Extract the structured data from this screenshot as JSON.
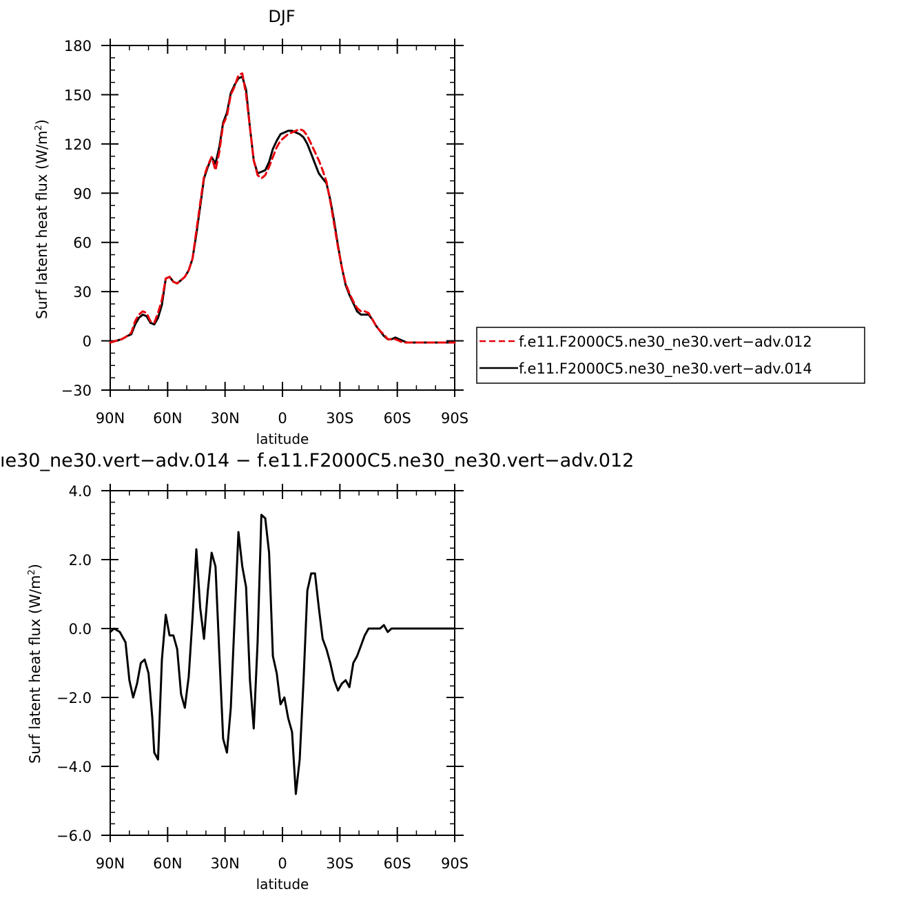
{
  "chart_data": [
    {
      "type": "line",
      "title": "DJF",
      "xlabel": "latitude",
      "ylabel": "Surf latent heat flux (W/m²)",
      "ylabel_main": "Surf latent heat flux (W/m",
      "ylabel_sup": "2",
      "ylabel_close": ")",
      "xlim": [
        90,
        -90
      ],
      "ylim": [
        -30,
        180
      ],
      "x_ticks": [
        90,
        60,
        30,
        0,
        -30,
        -60,
        -90
      ],
      "x_tick_labels": [
        "90N",
        "60N",
        "30N",
        "0",
        "30S",
        "60S",
        "90S"
      ],
      "y_ticks": [
        -30,
        0,
        30,
        60,
        90,
        120,
        150,
        180
      ],
      "y_tick_labels": [
        "−30",
        "0",
        "30",
        "60",
        "90",
        "120",
        "150",
        "180"
      ],
      "legend_position": "right",
      "series": [
        {
          "name": "f.e11.F2000C5.ne30_ne30.vert−adv.012",
          "color": "#e8000b",
          "dash": "dashed",
          "x": [
            90,
            87,
            84,
            81,
            79,
            77,
            75,
            73,
            71,
            69,
            67,
            65,
            63,
            61,
            59,
            57,
            55,
            53,
            51,
            49,
            47,
            45,
            43,
            41,
            39,
            37,
            35,
            33,
            31,
            29,
            27,
            25,
            23,
            21,
            19,
            17,
            15,
            13,
            11,
            9,
            7,
            5,
            3,
            1,
            -1,
            -3,
            -5,
            -7,
            -9,
            -11,
            -13,
            -15,
            -17,
            -19,
            -21,
            -23,
            -25,
            -27,
            -29,
            -31,
            -33,
            -35,
            -37,
            -39,
            -41,
            -43,
            -45,
            -47,
            -49,
            -51,
            -53,
            -55,
            -57,
            -59,
            -61,
            -63,
            -65,
            -67,
            -69,
            -71,
            -73,
            -75,
            -77,
            -79,
            -81,
            -83,
            -85,
            -87,
            -89,
            -90
          ],
          "y": [
            -1,
            0,
            1,
            3,
            5,
            12,
            16,
            18,
            17,
            12,
            11,
            17,
            25,
            38,
            39,
            36,
            35,
            37,
            39,
            43,
            50,
            67,
            84,
            100,
            107,
            112,
            104,
            115,
            132,
            137,
            150,
            155,
            162,
            163,
            150,
            130,
            110,
            101,
            99,
            101,
            106,
            112,
            118,
            122,
            124,
            126,
            127,
            128,
            129,
            128,
            125,
            120,
            115,
            110,
            104,
            97,
            85,
            71,
            57,
            45,
            35,
            29,
            24,
            20,
            18,
            18,
            17,
            13,
            9,
            6,
            4,
            1,
            1,
            1,
            0,
            -1,
            -1,
            -1,
            -1,
            -1,
            -1,
            -1,
            -1,
            -1,
            -1,
            -1,
            -1,
            -1,
            -1,
            -1
          ]
        },
        {
          "name": "f.e11.F2000C5.ne30_ne30.vert−adv.014",
          "color": "#000000",
          "dash": "solid",
          "x": [
            90,
            87,
            84,
            81,
            79,
            77,
            75,
            73,
            71,
            69,
            67,
            65,
            63,
            61,
            59,
            57,
            55,
            53,
            51,
            49,
            47,
            45,
            43,
            41,
            39,
            37,
            35,
            33,
            31,
            29,
            27,
            25,
            23,
            21,
            19,
            17,
            15,
            13,
            11,
            9,
            7,
            5,
            3,
            1,
            -1,
            -3,
            -5,
            -7,
            -9,
            -11,
            -13,
            -15,
            -17,
            -19,
            -21,
            -23,
            -25,
            -27,
            -29,
            -31,
            -33,
            -35,
            -37,
            -39,
            -41,
            -43,
            -45,
            -47,
            -49,
            -51,
            -53,
            -55,
            -57,
            -59,
            -61,
            -63,
            -65,
            -67,
            -69,
            -71,
            -73,
            -75,
            -77,
            -79,
            -81,
            -83,
            -85,
            -87,
            -89,
            -90
          ],
          "y": [
            -1,
            0,
            1,
            3,
            4,
            10,
            14,
            16,
            15,
            11,
            10,
            14,
            22,
            38,
            39,
            36,
            35,
            37,
            39,
            43,
            50,
            65,
            82,
            99,
            106,
            112,
            108,
            118,
            133,
            139,
            151,
            156,
            160,
            161,
            153,
            130,
            110,
            102,
            103,
            104,
            109,
            117,
            122,
            126,
            127,
            128,
            128,
            127,
            126,
            124,
            120,
            114,
            108,
            102,
            99,
            96,
            86,
            73,
            58,
            45,
            34,
            28,
            23,
            18,
            16,
            16,
            16,
            13,
            9,
            6,
            3,
            1,
            1,
            2,
            1,
            0,
            -1,
            -1,
            -1,
            -1,
            -1,
            -1,
            -1,
            -1,
            -1,
            -1,
            -1,
            -1,
            -1,
            -1
          ]
        }
      ]
    },
    {
      "type": "line",
      "title": "ıe30_ne30.vert−adv.014 − f.e11.F2000C5.ne30_ne30.vert−adv.012",
      "xlabel": "latitude",
      "ylabel": "Surf latent heat flux (W/m²)",
      "ylabel_main": "Surf latent heat flux (W/m",
      "ylabel_sup": "2",
      "ylabel_close": ")",
      "xlim": [
        90,
        -90
      ],
      "ylim": [
        -6,
        4
      ],
      "x_ticks": [
        90,
        60,
        30,
        0,
        -30,
        -60,
        -90
      ],
      "x_tick_labels": [
        "90N",
        "60N",
        "30N",
        "0",
        "30S",
        "60S",
        "90S"
      ],
      "y_ticks": [
        -6,
        -4,
        -2,
        0,
        2,
        4
      ],
      "y_tick_labels": [
        "−6.0",
        "−4.0",
        "−2.0",
        "0.0",
        "2.0",
        "4.0"
      ],
      "series": [
        {
          "color": "#000000",
          "dash": "solid",
          "x": [
            90,
            88,
            85,
            82,
            80,
            78,
            76,
            74,
            72,
            70,
            68,
            67,
            65,
            63,
            61,
            59,
            57,
            55,
            53,
            51,
            49,
            47,
            45,
            43,
            41,
            39,
            37,
            35,
            33,
            31,
            29,
            27,
            25,
            23,
            21,
            19,
            17,
            15,
            13,
            11,
            9,
            7,
            5,
            3,
            1,
            -1,
            -3,
            -5,
            -7,
            -9,
            -11,
            -13,
            -15,
            -17,
            -19,
            -21,
            -23,
            -25,
            -27,
            -29,
            -31,
            -33,
            -35,
            -37,
            -39,
            -41,
            -43,
            -45,
            -47,
            -49,
            -51,
            -53,
            -55,
            -57,
            -59,
            -61,
            -63,
            -65,
            -67,
            -69,
            -71,
            -73,
            -75,
            -77,
            -79,
            -81,
            -83,
            -85,
            -87,
            -89,
            -90
          ],
          "y": [
            -0.1,
            0.0,
            -0.1,
            -0.4,
            -1.5,
            -2.0,
            -1.6,
            -1.0,
            -0.9,
            -1.3,
            -2.6,
            -3.6,
            -3.8,
            -0.9,
            0.4,
            -0.2,
            -0.2,
            -0.6,
            -1.9,
            -2.3,
            -1.4,
            0.3,
            2.3,
            0.6,
            -0.3,
            1.1,
            2.2,
            1.8,
            -0.7,
            -3.2,
            -3.6,
            -2.3,
            0.3,
            2.8,
            1.8,
            1.2,
            -1.5,
            -2.9,
            -0.4,
            3.3,
            3.2,
            2.2,
            -0.8,
            -1.3,
            -2.2,
            -2.0,
            -2.6,
            -3.0,
            -4.8,
            -3.8,
            -1.5,
            1.1,
            1.6,
            1.6,
            0.6,
            -0.3,
            -0.6,
            -1.0,
            -1.5,
            -1.8,
            -1.6,
            -1.5,
            -1.7,
            -1.0,
            -0.8,
            -0.5,
            -0.2,
            0.0,
            0.0,
            0.0,
            0.0,
            0.1,
            -0.1,
            0.0,
            0.0,
            0.0,
            0.0,
            0.0,
            0.0,
            0.0,
            0.0,
            0.0,
            0.0,
            0.0,
            0.0,
            0.0,
            0.0,
            0.0,
            0.0,
            0.0,
            0.0
          ]
        }
      ]
    }
  ]
}
